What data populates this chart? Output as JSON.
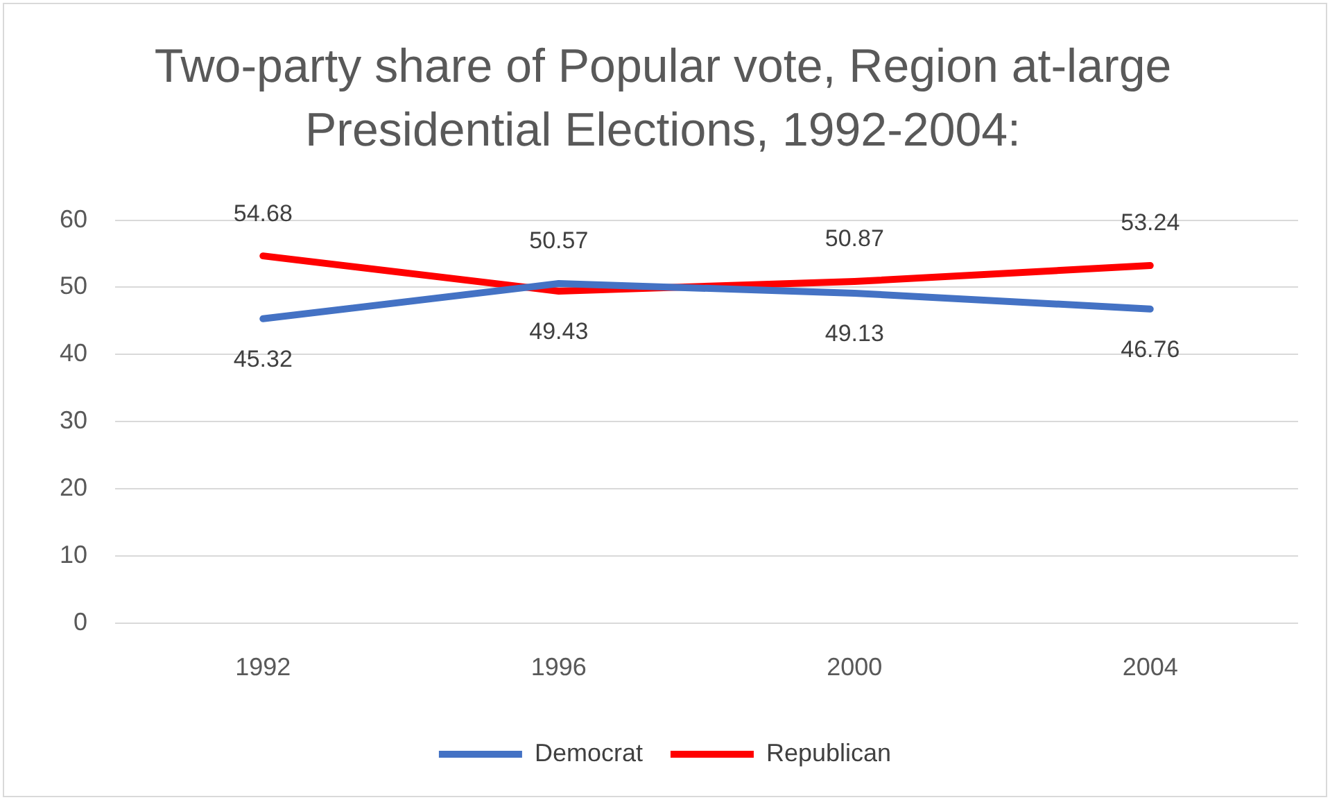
{
  "chart_data": {
    "type": "line",
    "title": "Two-party share of Popular vote, Region at-large Presidential Elections, 1992-2004:",
    "categories": [
      "1992",
      "1996",
      "2000",
      "2004"
    ],
    "series": [
      {
        "name": "Democrat",
        "color": "#4472c4",
        "values": [
          45.32,
          50.57,
          49.13,
          46.76
        ]
      },
      {
        "name": "Republican",
        "color": "#ff0000",
        "values": [
          54.68,
          49.43,
          50.87,
          53.24
        ]
      }
    ],
    "ylim": [
      0,
      60
    ],
    "yticks": [
      0,
      10,
      20,
      30,
      40,
      50,
      60
    ],
    "grid": "y",
    "legend": "bottom",
    "marker": "none",
    "line_style": "solid",
    "data_labels": true
  }
}
